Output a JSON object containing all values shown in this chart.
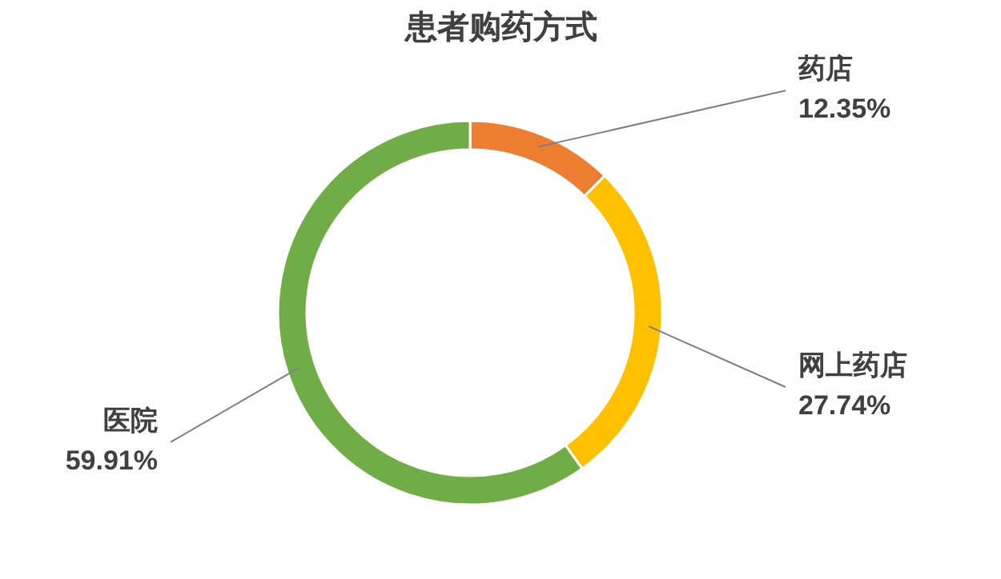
{
  "chart_data": {
    "type": "donut",
    "title": "患者购药方式",
    "categories": [
      "药店",
      "网上药店",
      "医院"
    ],
    "values": [
      12.35,
      27.74,
      59.91
    ],
    "value_labels": [
      "12.35%",
      "27.74%",
      "59.91%"
    ],
    "colors": [
      "#ed7d31",
      "#ffc000",
      "#70ad47"
    ]
  }
}
